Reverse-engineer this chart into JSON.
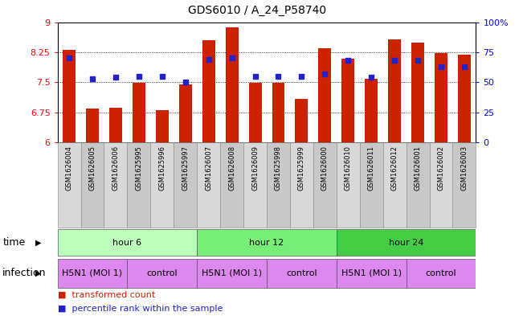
{
  "title": "GDS6010 / A_24_P58740",
  "samples": [
    "GSM1626004",
    "GSM1626005",
    "GSM1626006",
    "GSM1625995",
    "GSM1625996",
    "GSM1625997",
    "GSM1626007",
    "GSM1626008",
    "GSM1626009",
    "GSM1625998",
    "GSM1625999",
    "GSM1626000",
    "GSM1626010",
    "GSM1626011",
    "GSM1626012",
    "GSM1626001",
    "GSM1626002",
    "GSM1626003"
  ],
  "bar_values": [
    8.3,
    6.85,
    6.87,
    7.48,
    6.8,
    7.45,
    8.55,
    8.87,
    7.48,
    7.48,
    7.08,
    8.35,
    8.08,
    7.58,
    8.57,
    8.48,
    8.22,
    8.18
  ],
  "dot_values_pct": [
    70,
    53,
    54,
    55,
    55,
    50,
    69,
    70,
    55,
    55,
    55,
    57,
    68,
    54,
    68,
    68,
    63,
    63
  ],
  "ylim": [
    6,
    9
  ],
  "yticks": [
    6,
    6.75,
    7.5,
    8.25,
    9
  ],
  "ytick_labels": [
    "6",
    "6.75",
    "7.5",
    "8.25",
    "9"
  ],
  "right_yticks": [
    0,
    25,
    50,
    75,
    100
  ],
  "right_ytick_labels": [
    "0",
    "25",
    "50",
    "75",
    "100%"
  ],
  "bar_color": "#cc2200",
  "dot_color": "#2222cc",
  "bar_width": 0.55,
  "time_groups": [
    {
      "label": "hour 6",
      "start": 0,
      "end": 6,
      "color": "#bbffbb"
    },
    {
      "label": "hour 12",
      "start": 6,
      "end": 12,
      "color": "#77ee77"
    },
    {
      "label": "hour 24",
      "start": 12,
      "end": 18,
      "color": "#44cc44"
    }
  ],
  "infection_h5n1_color": "#dd88ee",
  "infection_ctrl_color": "#dd88ee",
  "infection_groups": [
    {
      "label": "H5N1 (MOI 1)",
      "start": 0,
      "end": 3
    },
    {
      "label": "control",
      "start": 3,
      "end": 6
    },
    {
      "label": "H5N1 (MOI 1)",
      "start": 6,
      "end": 9
    },
    {
      "label": "control",
      "start": 9,
      "end": 12
    },
    {
      "label": "H5N1 (MOI 1)",
      "start": 12,
      "end": 15
    },
    {
      "label": "control",
      "start": 15,
      "end": 18
    }
  ],
  "time_label": "time",
  "infection_label": "infection",
  "legend_bar": "transformed count",
  "legend_dot": "percentile rank within the sample",
  "title_fontsize": 10,
  "tick_fontsize": 8,
  "label_fontsize": 9,
  "sample_fontsize": 6,
  "row_fontsize": 8
}
